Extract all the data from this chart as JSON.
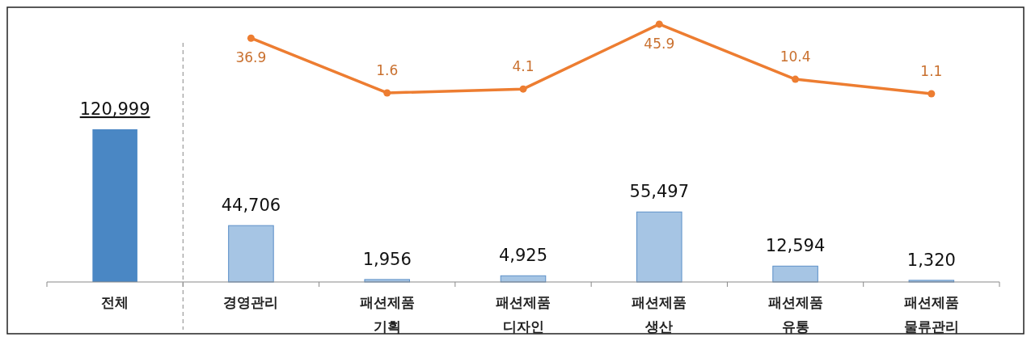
{
  "chart_data": {
    "type": "bar",
    "categories": [
      "전체",
      "경영관리",
      "패션제품\n기획",
      "패션제품\n디자인",
      "패션제품\n생산",
      "패션제품\n유통",
      "패션제품\n물류관리"
    ],
    "data_labels": true,
    "grid": false,
    "ylim": [
      -41000,
      217700
    ],
    "y2lim": [
      -153.6,
      56.8
    ],
    "series": [
      {
        "colors": [
          "#4a87c4",
          "#a6c5e4",
          "#a6c5e4",
          "#a6c5e4",
          "#a6c5e4",
          "#a6c5e4",
          "#a6c5e4"
        ],
        "values": [
          120999,
          44706,
          1956,
          4925,
          55497,
          12594,
          1320
        ],
        "value_labels": [
          "120,999",
          "44,706",
          "1,956",
          "4,925",
          "55,497",
          "12,594",
          "1,320"
        ]
      },
      {
        "type": "line",
        "axis": "y2",
        "color": "#ed7d31",
        "marker": "circle",
        "values": [
          null,
          36.9,
          1.6,
          4.1,
          45.9,
          10.4,
          1.1
        ]
      }
    ]
  }
}
